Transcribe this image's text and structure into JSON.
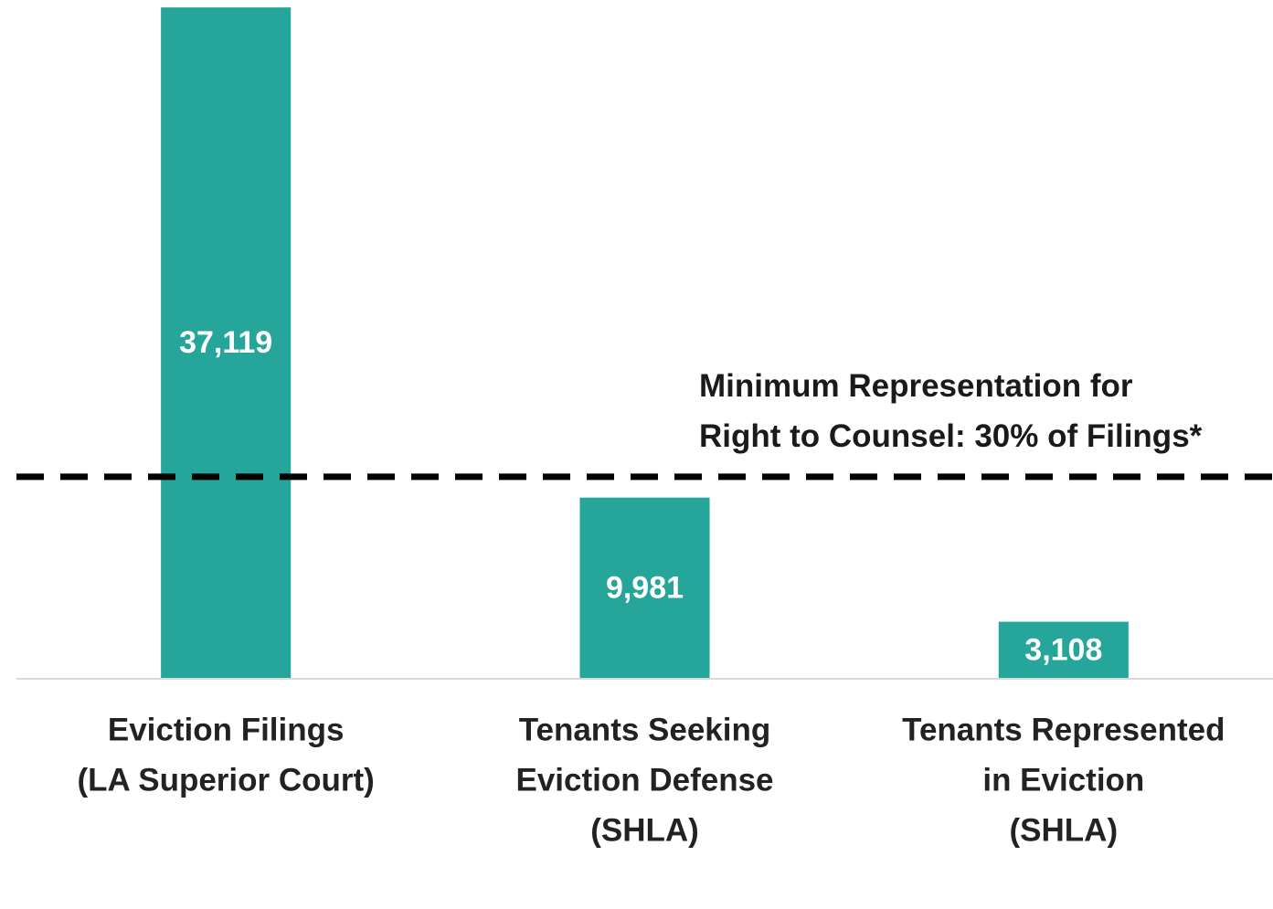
{
  "chart_data": {
    "type": "bar",
    "categories": [
      [
        "Eviction Filings",
        "(LA Superior Court)"
      ],
      [
        "Tenants Seeking",
        "Eviction Defense",
        "(SHLA)"
      ],
      [
        "Tenants Represented",
        "in Eviction",
        "(SHLA)"
      ]
    ],
    "values": [
      37119,
      9981,
      3108
    ],
    "value_labels": [
      "37,119",
      "9,981",
      "3,108"
    ],
    "color": "#26a69a",
    "ylim": [
      0,
      37500
    ],
    "reference_line": {
      "value": 11136,
      "label": [
        "Minimum Representation for",
        "Right to Counsel:  30% of Filings*"
      ]
    }
  }
}
